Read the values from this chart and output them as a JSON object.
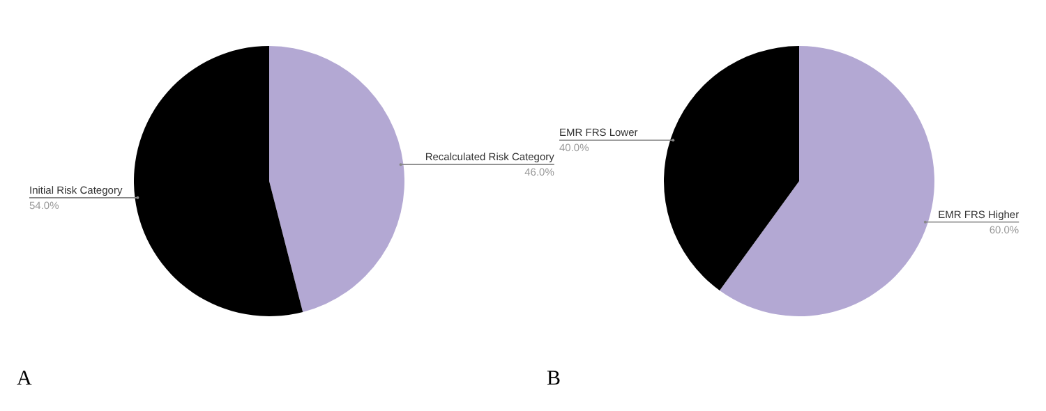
{
  "chart_data": [
    {
      "type": "pie",
      "categories": [
        "Recalculated Risk Category",
        "Initial Risk Category"
      ],
      "values": [
        46,
        54
      ],
      "value_labels": [
        "46.0%",
        "54.0%"
      ],
      "colors": [
        "#b3a8d3",
        "#000000"
      ],
      "annotations": [
        "A"
      ]
    },
    {
      "type": "pie",
      "categories": [
        "EMR FRS Higher",
        "EMR FRS Lower"
      ],
      "values": [
        60,
        40
      ],
      "value_labels": [
        "60.0%",
        "40.0%"
      ],
      "colors": [
        "#b3a8d3",
        "#000000"
      ],
      "annotations": [
        "B"
      ]
    }
  ]
}
